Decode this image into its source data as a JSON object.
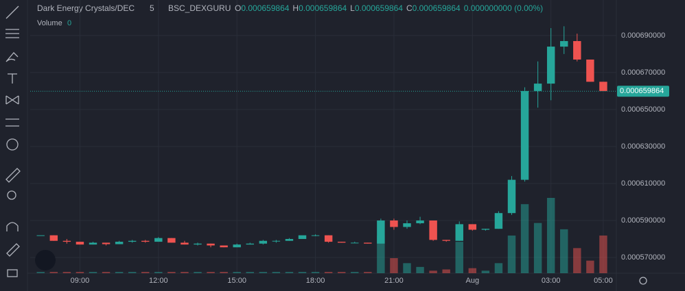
{
  "chart_data": {
    "type": "candlestick",
    "symbol": "Dark Energy Crystals/DEC",
    "interval": "5",
    "source": "BSC_DEXGURU",
    "ohlc_labels": [
      "O",
      "H",
      "L",
      "C"
    ],
    "ohlc_values": [
      "0.000659864",
      "0.000659864",
      "0.000659864",
      "0.000659864"
    ],
    "change": "0.000000000 (0.00%)",
    "volume_label": "Volume",
    "volume_value": 0,
    "last_price": 0.000659864,
    "up_color": "#26a69a",
    "down_color": "#ef5350",
    "x": [
      7.5,
      8,
      8.5,
      9,
      9.5,
      10,
      10.5,
      11,
      11.5,
      12,
      12.5,
      13,
      13.5,
      14,
      14.5,
      15,
      15.5,
      16,
      16.5,
      17,
      17.5,
      18,
      18.5,
      19,
      19.5,
      20,
      20.5,
      21,
      21.5,
      22,
      22.5,
      23,
      23.5,
      24,
      24.5,
      25,
      25.5,
      26,
      26.5,
      27,
      27.5,
      28,
      28.5,
      29
    ],
    "open": [
      0.000582,
      0.000582,
      0.000579,
      0.0005785,
      0.000577,
      0.000578,
      0.0005772,
      0.0005785,
      0.000579,
      0.0005785,
      0.0005805,
      0.000578,
      0.000577,
      0.0005775,
      0.0005765,
      0.0005755,
      0.000577,
      0.0005775,
      0.000579,
      0.000579,
      0.00058,
      0.000582,
      0.000582,
      0.0005785,
      0.000578,
      0.000578,
      0.0005775,
      0.00059,
      0.0005865,
      0.0005885,
      0.00059,
      0.0005795,
      0.000579,
      0.000588,
      0.000585,
      0.0005855,
      0.000594,
      0.000612,
      0.00066,
      0.000664,
      0.000684,
      0.000687,
      0.000677,
      0.000665
    ],
    "high": [
      0.000582,
      0.000582,
      0.00058,
      0.0005785,
      0.0005785,
      0.000578,
      0.000579,
      0.0005795,
      0.0005795,
      0.000581,
      0.0005805,
      0.000579,
      0.000578,
      0.0005775,
      0.0005765,
      0.0005775,
      0.000578,
      0.0005795,
      0.0005795,
      0.0005805,
      0.0005815,
      0.0005825,
      0.000582,
      0.0005785,
      0.0005785,
      0.000578,
      0.000591,
      0.000591,
      0.00059,
      0.000592,
      0.00059,
      0.0005795,
      0.0005895,
      0.000588,
      0.0005855,
      0.000595,
      0.000614,
      0.000662,
      0.000676,
      0.000694,
      0.000695,
      0.000691,
      0.000677,
      0.000665
    ],
    "low": [
      0.000582,
      0.000579,
      0.0005775,
      0.000577,
      0.000577,
      0.0005765,
      0.0005772,
      0.000578,
      0.000578,
      0.0005785,
      0.000578,
      0.000577,
      0.0005765,
      0.0005755,
      0.0005755,
      0.0005755,
      0.000577,
      0.000577,
      0.000578,
      0.000579,
      0.00058,
      0.0005815,
      0.000578,
      0.000578,
      0.000578,
      0.0005775,
      0.0005775,
      0.000585,
      0.0005855,
      0.000588,
      0.000579,
      0.0005785,
      0.000579,
      0.0005845,
      0.0005845,
      0.0005855,
      0.000593,
      0.000611,
      0.000651,
      0.000655,
      0.00068,
      0.000676,
      0.000665,
      0.00066
    ],
    "close": [
      0.000582,
      0.000579,
      0.0005785,
      0.000577,
      0.000578,
      0.0005772,
      0.0005785,
      0.000579,
      0.0005785,
      0.0005805,
      0.000578,
      0.000577,
      0.0005775,
      0.0005765,
      0.0005755,
      0.000577,
      0.0005775,
      0.000579,
      0.000579,
      0.00058,
      0.000582,
      0.000582,
      0.0005785,
      0.000578,
      0.000578,
      0.0005775,
      0.00059,
      0.0005865,
      0.0005885,
      0.00059,
      0.0005795,
      0.000579,
      0.000588,
      0.000585,
      0.0005855,
      0.000594,
      0.000612,
      0.00066,
      0.000664,
      0.000684,
      0.000687,
      0.000677,
      0.000665,
      0.00066
    ],
    "volume": [
      1,
      1,
      1,
      1,
      1,
      1,
      1,
      1,
      1,
      1,
      1,
      1,
      1,
      1,
      1,
      1,
      1,
      1,
      1,
      1,
      1,
      1,
      1,
      1,
      1,
      1,
      30,
      12,
      8,
      5,
      2,
      3,
      25,
      4,
      2,
      8,
      30,
      55,
      40,
      60,
      35,
      20,
      10,
      30
    ],
    "xlim": [
      7.1,
      29.5
    ],
    "xticks": [
      {
        "value": 9,
        "label": "09:00"
      },
      {
        "value": 12,
        "label": "12:00"
      },
      {
        "value": 15,
        "label": "15:00"
      },
      {
        "value": 18,
        "label": "18:00"
      },
      {
        "value": 21,
        "label": "21:00"
      },
      {
        "value": 24,
        "label": "Aug"
      },
      {
        "value": 27,
        "label": "03:00"
      },
      {
        "value": 29,
        "label": "05:00"
      }
    ],
    "ylim": [
      0.0005615,
      0.0007092
    ],
    "yticks": [
      {
        "value": 0.00057,
        "label": "0.000570000"
      },
      {
        "value": 0.00059,
        "label": "0.000590000"
      },
      {
        "value": 0.00061,
        "label": "0.000610000"
      },
      {
        "value": 0.00063,
        "label": "0.000630000"
      },
      {
        "value": 0.00065,
        "label": "0.000650000"
      },
      {
        "value": 0.00067,
        "label": "0.000670000"
      },
      {
        "value": 0.00069,
        "label": "0.000690000"
      }
    ],
    "grid": true
  }
}
